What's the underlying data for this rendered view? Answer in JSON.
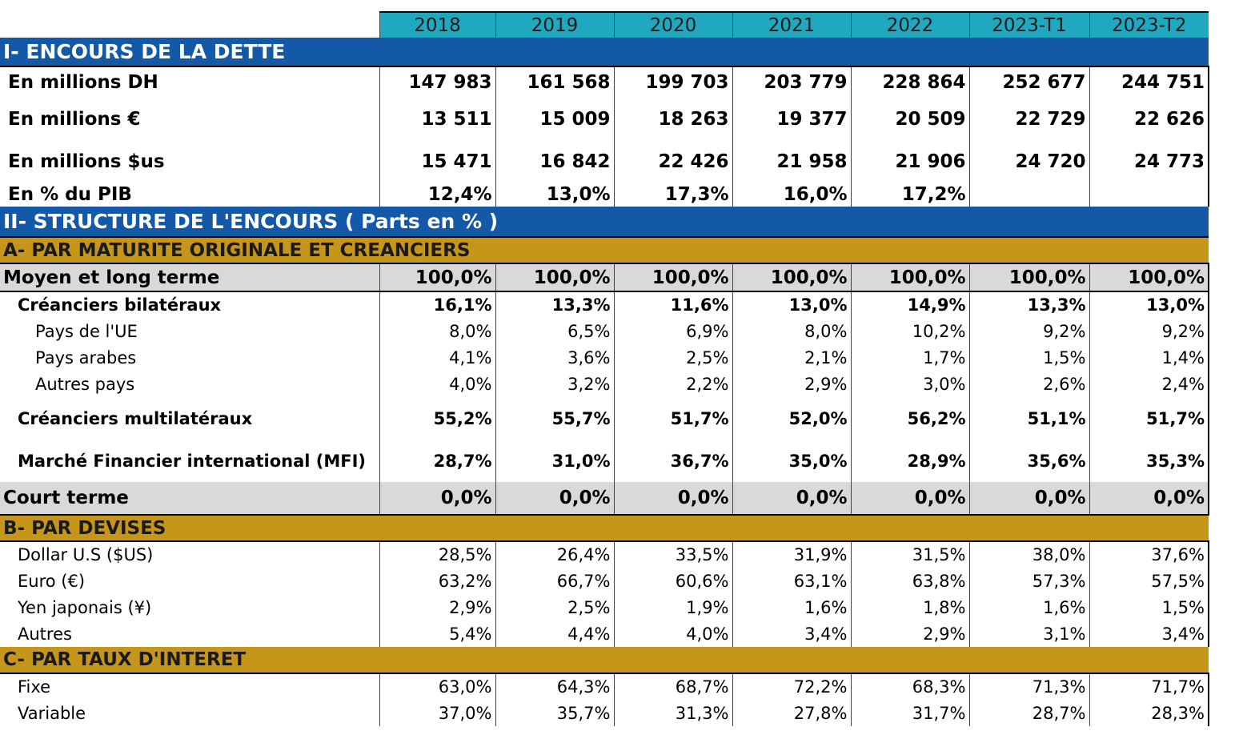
{
  "years": [
    "2018",
    "2019",
    "2020",
    "2021",
    "2022",
    "2023-T1",
    "2023-T2"
  ],
  "sections": {
    "encours": "I- ENCOURS DE LA DETTE",
    "structure": "II- STRUCTURE DE L'ENCOURS ( Parts en % )",
    "maturite": "A- PAR MATURITE ORIGINALE ET CREANCIERS",
    "devises": "B- PAR DEVISES",
    "taux": "C- PAR TAUX D'INTERET"
  },
  "rows": {
    "mdh": {
      "label": "En millions DH",
      "values": [
        "147 983",
        "161 568",
        "199 703",
        "203 779",
        "228 864",
        "252 677",
        "244 751"
      ]
    },
    "meur": {
      "label": "En millions €",
      "values": [
        "13 511",
        "15 009",
        "18 263",
        "19 377",
        "20 509",
        "22 729",
        "22 626"
      ]
    },
    "musd": {
      "label": "En millions $us",
      "values": [
        "15 471",
        "16 842",
        "22 426",
        "21 958",
        "21 906",
        "24 720",
        "24 773"
      ]
    },
    "pib": {
      "label": "En % du PIB",
      "values": [
        "12,4%",
        "13,0%",
        "17,3%",
        "16,0%",
        "17,2%",
        "",
        ""
      ]
    },
    "mlt": {
      "label": "Moyen et long terme",
      "values": [
        "100,0%",
        "100,0%",
        "100,0%",
        "100,0%",
        "100,0%",
        "100,0%",
        "100,0%"
      ]
    },
    "bilat": {
      "label": "Créanciers bilatéraux",
      "values": [
        "16,1%",
        "13,3%",
        "11,6%",
        "13,0%",
        "14,9%",
        "13,3%",
        "13,0%"
      ]
    },
    "ue": {
      "label": "Pays de l'UE",
      "values": [
        "8,0%",
        "6,5%",
        "6,9%",
        "8,0%",
        "10,2%",
        "9,2%",
        "9,2%"
      ]
    },
    "arabes": {
      "label": "Pays arabes",
      "values": [
        "4,1%",
        "3,6%",
        "2,5%",
        "2,1%",
        "1,7%",
        "1,5%",
        "1,4%"
      ]
    },
    "autres_pays": {
      "label": "Autres pays",
      "values": [
        "4,0%",
        "3,2%",
        "2,2%",
        "2,9%",
        "3,0%",
        "2,6%",
        "2,4%"
      ]
    },
    "multi": {
      "label": "Créanciers multilatéraux",
      "values": [
        "55,2%",
        "55,7%",
        "51,7%",
        "52,0%",
        "56,2%",
        "51,1%",
        "51,7%"
      ]
    },
    "mfi": {
      "label": "Marché Financier international (MFI)",
      "values": [
        "28,7%",
        "31,0%",
        "36,7%",
        "35,0%",
        "28,9%",
        "35,6%",
        "35,3%"
      ]
    },
    "ct": {
      "label": "Court terme",
      "values": [
        "0,0%",
        "0,0%",
        "0,0%",
        "0,0%",
        "0,0%",
        "0,0%",
        "0,0%"
      ]
    },
    "usd": {
      "label": "Dollar U.S ($US)",
      "values": [
        "28,5%",
        "26,4%",
        "33,5%",
        "31,9%",
        "31,5%",
        "38,0%",
        "37,6%"
      ]
    },
    "eur": {
      "label": "Euro (€)",
      "values": [
        "63,2%",
        "66,7%",
        "60,6%",
        "63,1%",
        "63,8%",
        "57,3%",
        "57,5%"
      ]
    },
    "yen": {
      "label": "Yen japonais (¥)",
      "values": [
        "2,9%",
        "2,5%",
        "1,9%",
        "1,6%",
        "1,8%",
        "1,6%",
        "1,5%"
      ]
    },
    "autres_dev": {
      "label": "Autres",
      "values": [
        "5,4%",
        "4,4%",
        "4,0%",
        "3,4%",
        "2,9%",
        "3,1%",
        "3,4%"
      ]
    },
    "fixe": {
      "label": "Fixe",
      "values": [
        "63,0%",
        "64,3%",
        "68,7%",
        "72,2%",
        "68,3%",
        "71,3%",
        "71,7%"
      ]
    },
    "variable": {
      "label": "Variable",
      "values": [
        "37,0%",
        "35,7%",
        "31,3%",
        "27,8%",
        "31,7%",
        "28,7%",
        "28,3%"
      ]
    }
  }
}
